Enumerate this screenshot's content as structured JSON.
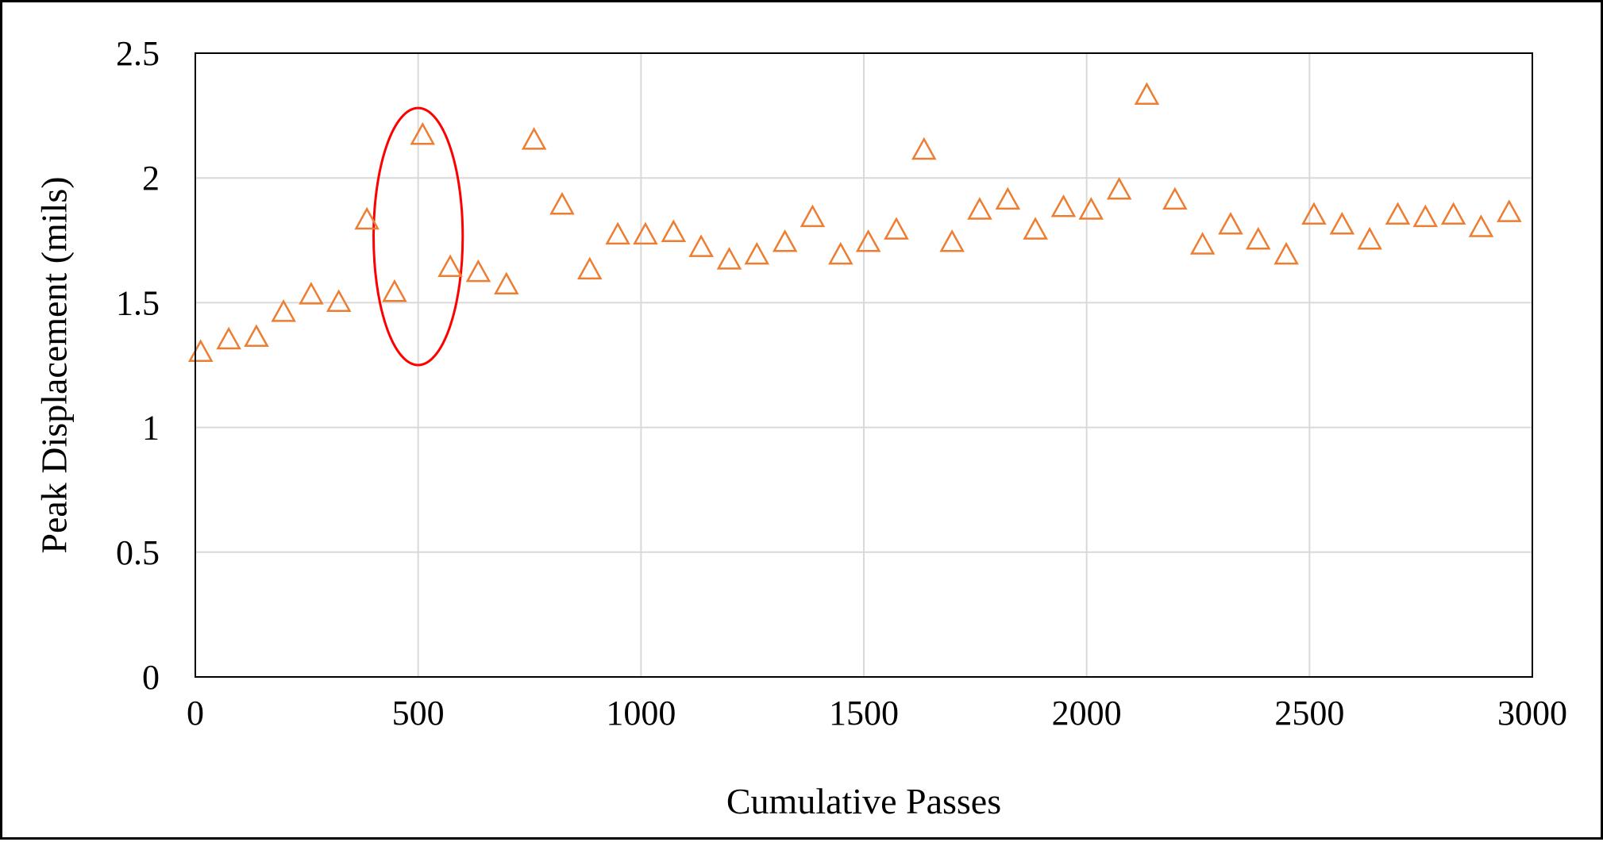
{
  "chart_data": {
    "type": "scatter",
    "title": "",
    "xlabel": "Cumulative Passes",
    "ylabel": "Peak Displacement (mils)",
    "xlim": [
      0,
      3000
    ],
    "ylim": [
      0,
      2.5
    ],
    "x_ticks": [
      "0",
      "500",
      "1000",
      "1500",
      "2000",
      "2500",
      "3000"
    ],
    "y_ticks": [
      "0",
      "0.5",
      "1",
      "1.5",
      "2",
      "2.5"
    ],
    "grid": true,
    "legend": "none",
    "marker": "triangle-open",
    "marker_color": "#ED7D31",
    "highlight": {
      "shape": "ellipse",
      "color": "#FF0000",
      "x_range": [
        400,
        600
      ],
      "y_range": [
        1.25,
        2.28
      ]
    },
    "series": [
      {
        "values": [
          [
            12,
            1.3
          ],
          [
            75,
            1.35
          ],
          [
            137,
            1.36
          ],
          [
            198,
            1.46
          ],
          [
            260,
            1.53
          ],
          [
            322,
            1.5
          ],
          [
            385,
            1.83
          ],
          [
            447,
            1.54
          ],
          [
            510,
            2.17
          ],
          [
            572,
            1.64
          ],
          [
            635,
            1.62
          ],
          [
            698,
            1.57
          ],
          [
            760,
            2.15
          ],
          [
            823,
            1.89
          ],
          [
            885,
            1.63
          ],
          [
            948,
            1.77
          ],
          [
            1010,
            1.77
          ],
          [
            1073,
            1.78
          ],
          [
            1135,
            1.72
          ],
          [
            1198,
            1.67
          ],
          [
            1260,
            1.69
          ],
          [
            1323,
            1.74
          ],
          [
            1385,
            1.84
          ],
          [
            1448,
            1.69
          ],
          [
            1510,
            1.74
          ],
          [
            1573,
            1.79
          ],
          [
            1635,
            2.11
          ],
          [
            1698,
            1.74
          ],
          [
            1760,
            1.87
          ],
          [
            1823,
            1.91
          ],
          [
            1885,
            1.79
          ],
          [
            1948,
            1.88
          ],
          [
            2010,
            1.87
          ],
          [
            2073,
            1.95
          ],
          [
            2135,
            2.33
          ],
          [
            2198,
            1.91
          ],
          [
            2260,
            1.73
          ],
          [
            2323,
            1.81
          ],
          [
            2385,
            1.75
          ],
          [
            2448,
            1.69
          ],
          [
            2510,
            1.85
          ],
          [
            2573,
            1.81
          ],
          [
            2635,
            1.75
          ],
          [
            2698,
            1.85
          ],
          [
            2760,
            1.84
          ],
          [
            2823,
            1.85
          ],
          [
            2885,
            1.8
          ],
          [
            2948,
            1.86
          ]
        ]
      }
    ]
  }
}
